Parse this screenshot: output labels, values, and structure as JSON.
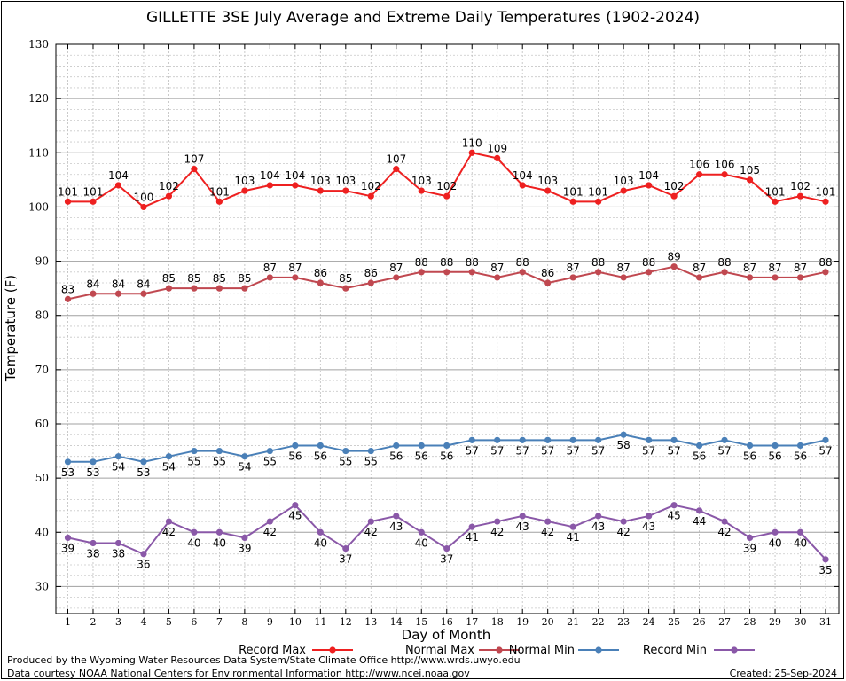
{
  "chart_data": {
    "type": "line",
    "title": "GILLETTE 3SE July Average and Extreme Daily Temperatures (1902-2024)",
    "xlabel": "Day of Month",
    "ylabel": "Temperature (F)",
    "ylim": [
      25,
      130
    ],
    "yticks": [
      30,
      40,
      50,
      60,
      70,
      80,
      90,
      100,
      110,
      120,
      130
    ],
    "x": [
      1,
      2,
      3,
      4,
      5,
      6,
      7,
      8,
      9,
      10,
      11,
      12,
      13,
      14,
      15,
      16,
      17,
      18,
      19,
      20,
      21,
      22,
      23,
      24,
      25,
      26,
      27,
      28,
      29,
      30,
      31
    ],
    "grid": true,
    "legend_position": "bottom",
    "series": [
      {
        "name": "Record Max",
        "color": "#ee2020",
        "label_pos": "above",
        "values": [
          101,
          101,
          104,
          100,
          102,
          107,
          101,
          103,
          104,
          104,
          103,
          103,
          102,
          107,
          103,
          102,
          110,
          109,
          104,
          103,
          101,
          101,
          103,
          104,
          102,
          106,
          106,
          105,
          101,
          102,
          101
        ]
      },
      {
        "name": "Normal Max",
        "color": "#c04850",
        "label_pos": "above",
        "values": [
          83,
          84,
          84,
          84,
          85,
          85,
          85,
          85,
          87,
          87,
          86,
          85,
          86,
          87,
          88,
          88,
          88,
          87,
          88,
          86,
          87,
          88,
          87,
          88,
          89,
          87,
          88,
          87,
          87,
          87,
          88
        ]
      },
      {
        "name": "Normal Min",
        "color": "#4a80b8",
        "label_pos": "below",
        "values": [
          53,
          53,
          54,
          53,
          54,
          55,
          55,
          54,
          55,
          56,
          56,
          55,
          55,
          56,
          56,
          56,
          57,
          57,
          57,
          57,
          57,
          57,
          58,
          57,
          57,
          56,
          57,
          56,
          56,
          56,
          57
        ]
      },
      {
        "name": "Record Min",
        "color": "#8a58a8",
        "label_pos": "below",
        "values": [
          39,
          38,
          38,
          36,
          42,
          40,
          40,
          39,
          42,
          45,
          40,
          37,
          42,
          43,
          40,
          37,
          41,
          42,
          43,
          42,
          41,
          43,
          42,
          43,
          45,
          44,
          42,
          39,
          40,
          40,
          35
        ]
      }
    ]
  },
  "footer": {
    "line1": "Produced by the Wyoming Water Resources Data System/State Climate Office http://www.wrds.uwyo.edu",
    "line2": "Data courtesy NOAA National Centers for Environmental Information http://www.ncei.noaa.gov",
    "created": "Created:  25-Sep-2024"
  }
}
